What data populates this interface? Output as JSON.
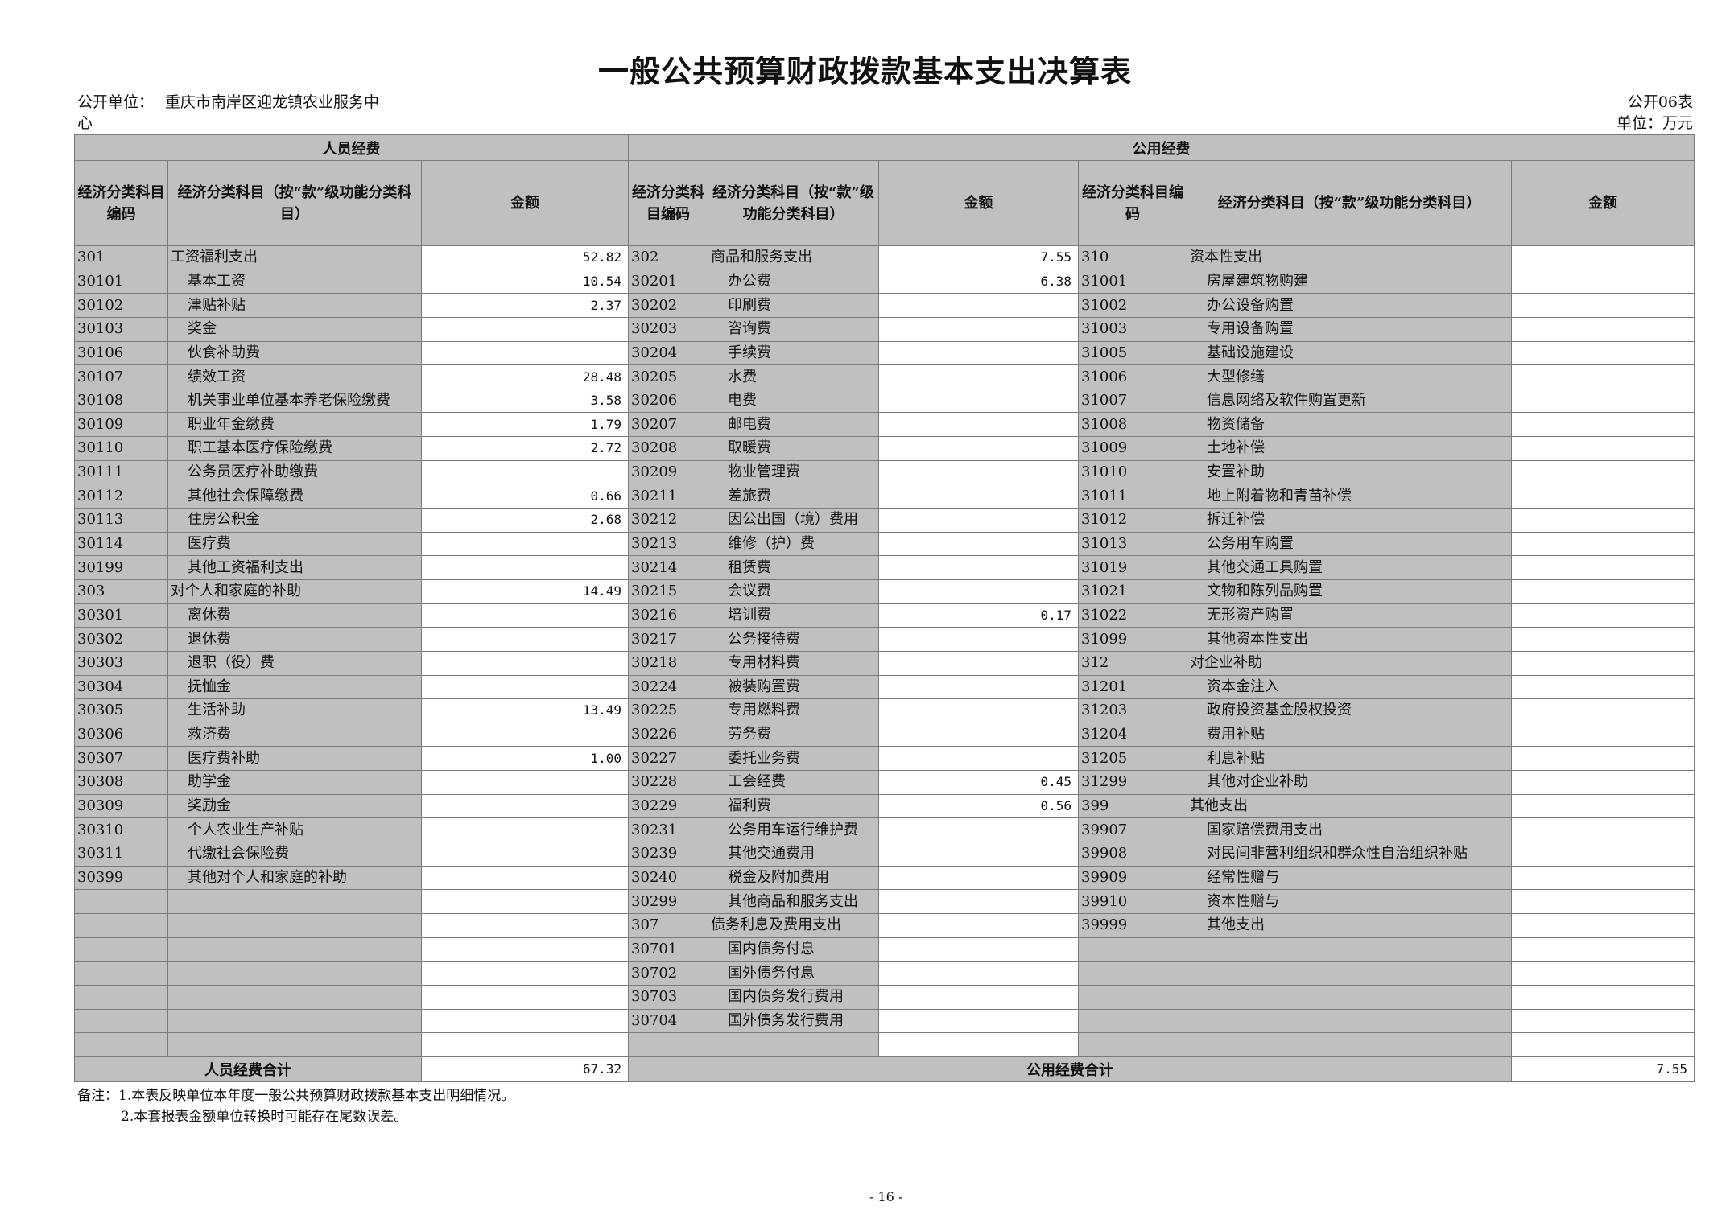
{
  "title": "一般公共预算财政拨款基本支出决算表",
  "unit_label": "公开单位：",
  "unit_name_line1": "重庆市南岸区迎龙镇农业服务中",
  "unit_name_line2": "心",
  "table_no": "公开06表",
  "currency_unit": "单位：万元",
  "colors": {
    "header_gray": "#c0c0c0",
    "amount_bg": "#ffffff",
    "border": "#7a7a7a"
  },
  "headers": {
    "personnel": "人员经费",
    "public": "公用经费",
    "code_a": "经济分类科目编码",
    "name_a": "经济分类科目（按“款”级功能分类科目）",
    "amount_a": "金额",
    "code_b": "经济分类科目编码",
    "name_b": "经济分类科目（按“款”级功能分类科目）",
    "amount_b": "金额",
    "code_c": "经济分类科目编码",
    "name_c": "经济分类科目（按“款”级功能分类科目）",
    "amount_c": "金额"
  },
  "personnel_rows": [
    {
      "code": "301",
      "name": "工资福利支出",
      "amount": "52.82"
    },
    {
      "code": "30101",
      "name": "基本工资",
      "amount": "10.54"
    },
    {
      "code": "30102",
      "name": "津贴补贴",
      "amount": "2.37"
    },
    {
      "code": "30103",
      "name": "奖金",
      "amount": ""
    },
    {
      "code": "30106",
      "name": "伙食补助费",
      "amount": ""
    },
    {
      "code": "30107",
      "name": "绩效工资",
      "amount": "28.48"
    },
    {
      "code": "30108",
      "name": "机关事业单位基本养老保险缴费",
      "amount": "3.58"
    },
    {
      "code": "30109",
      "name": "职业年金缴费",
      "amount": "1.79"
    },
    {
      "code": "30110",
      "name": "职工基本医疗保险缴费",
      "amount": "2.72"
    },
    {
      "code": "30111",
      "name": "公务员医疗补助缴费",
      "amount": ""
    },
    {
      "code": "30112",
      "name": "其他社会保障缴费",
      "amount": "0.66"
    },
    {
      "code": "30113",
      "name": "住房公积金",
      "amount": "2.68"
    },
    {
      "code": "30114",
      "name": "医疗费",
      "amount": ""
    },
    {
      "code": "30199",
      "name": "其他工资福利支出",
      "amount": ""
    },
    {
      "code": "303",
      "name": "对个人和家庭的补助",
      "amount": "14.49"
    },
    {
      "code": "30301",
      "name": "离休费",
      "amount": ""
    },
    {
      "code": "30302",
      "name": "退休费",
      "amount": ""
    },
    {
      "code": "30303",
      "name": "退职（役）费",
      "amount": ""
    },
    {
      "code": "30304",
      "name": "抚恤金",
      "amount": ""
    },
    {
      "code": "30305",
      "name": "生活补助",
      "amount": "13.49"
    },
    {
      "code": "30306",
      "name": "救济费",
      "amount": ""
    },
    {
      "code": "30307",
      "name": "医疗费补助",
      "amount": "1.00"
    },
    {
      "code": "30308",
      "name": "助学金",
      "amount": ""
    },
    {
      "code": "30309",
      "name": "奖励金",
      "amount": ""
    },
    {
      "code": "30310",
      "name": "个人农业生产补贴",
      "amount": ""
    },
    {
      "code": "30311",
      "name": "代缴社会保险费",
      "amount": ""
    },
    {
      "code": "30399",
      "name": "其他对个人和家庭的补助",
      "amount": ""
    }
  ],
  "public_rows_b": [
    {
      "code": "302",
      "name": "商品和服务支出",
      "amount": "7.55"
    },
    {
      "code": "30201",
      "name": "办公费",
      "amount": "6.38"
    },
    {
      "code": "30202",
      "name": "印刷费",
      "amount": ""
    },
    {
      "code": "30203",
      "name": "咨询费",
      "amount": ""
    },
    {
      "code": "30204",
      "name": "手续费",
      "amount": ""
    },
    {
      "code": "30205",
      "name": "水费",
      "amount": ""
    },
    {
      "code": "30206",
      "name": "电费",
      "amount": ""
    },
    {
      "code": "30207",
      "name": "邮电费",
      "amount": ""
    },
    {
      "code": "30208",
      "name": "取暖费",
      "amount": ""
    },
    {
      "code": "30209",
      "name": "物业管理费",
      "amount": ""
    },
    {
      "code": "30211",
      "name": "差旅费",
      "amount": ""
    },
    {
      "code": "30212",
      "name": "因公出国（境）费用",
      "amount": ""
    },
    {
      "code": "30213",
      "name": "维修（护）费",
      "amount": ""
    },
    {
      "code": "30214",
      "name": "租赁费",
      "amount": ""
    },
    {
      "code": "30215",
      "name": "会议费",
      "amount": ""
    },
    {
      "code": "30216",
      "name": "培训费",
      "amount": "0.17"
    },
    {
      "code": "30217",
      "name": "公务接待费",
      "amount": ""
    },
    {
      "code": "30218",
      "name": "专用材料费",
      "amount": ""
    },
    {
      "code": "30224",
      "name": "被装购置费",
      "amount": ""
    },
    {
      "code": "30225",
      "name": "专用燃料费",
      "amount": ""
    },
    {
      "code": "30226",
      "name": "劳务费",
      "amount": ""
    },
    {
      "code": "30227",
      "name": "委托业务费",
      "amount": ""
    },
    {
      "code": "30228",
      "name": "工会经费",
      "amount": "0.45"
    },
    {
      "code": "30229",
      "name": "福利费",
      "amount": "0.56"
    },
    {
      "code": "30231",
      "name": "公务用车运行维护费",
      "amount": ""
    },
    {
      "code": "30239",
      "name": "其他交通费用",
      "amount": ""
    },
    {
      "code": "30240",
      "name": "税金及附加费用",
      "amount": ""
    },
    {
      "code": "30299",
      "name": "其他商品和服务支出",
      "amount": ""
    },
    {
      "code": "307",
      "name": "债务利息及费用支出",
      "amount": ""
    },
    {
      "code": "30701",
      "name": "国内债务付息",
      "amount": ""
    },
    {
      "code": "30702",
      "name": "国外债务付息",
      "amount": ""
    },
    {
      "code": "30703",
      "name": "国内债务发行费用",
      "amount": ""
    },
    {
      "code": "30704",
      "name": "国外债务发行费用",
      "amount": ""
    }
  ],
  "public_rows_c": [
    {
      "code": "310",
      "name": "资本性支出",
      "amount": ""
    },
    {
      "code": "31001",
      "name": "房屋建筑物购建",
      "amount": ""
    },
    {
      "code": "31002",
      "name": "办公设备购置",
      "amount": ""
    },
    {
      "code": "31003",
      "name": "专用设备购置",
      "amount": ""
    },
    {
      "code": "31005",
      "name": "基础设施建设",
      "amount": ""
    },
    {
      "code": "31006",
      "name": "大型修缮",
      "amount": ""
    },
    {
      "code": "31007",
      "name": "信息网络及软件购置更新",
      "amount": ""
    },
    {
      "code": "31008",
      "name": "物资储备",
      "amount": ""
    },
    {
      "code": "31009",
      "name": "土地补偿",
      "amount": ""
    },
    {
      "code": "31010",
      "name": "安置补助",
      "amount": ""
    },
    {
      "code": "31011",
      "name": "地上附着物和青苗补偿",
      "amount": ""
    },
    {
      "code": "31012",
      "name": "拆迁补偿",
      "amount": ""
    },
    {
      "code": "31013",
      "name": "公务用车购置",
      "amount": ""
    },
    {
      "code": "31019",
      "name": "其他交通工具购置",
      "amount": ""
    },
    {
      "code": "31021",
      "name": "文物和陈列品购置",
      "amount": ""
    },
    {
      "code": "31022",
      "name": "无形资产购置",
      "amount": ""
    },
    {
      "code": "31099",
      "name": "其他资本性支出",
      "amount": ""
    },
    {
      "code": "312",
      "name": "对企业补助",
      "amount": ""
    },
    {
      "code": "31201",
      "name": "资本金注入",
      "amount": ""
    },
    {
      "code": "31203",
      "name": "政府投资基金股权投资",
      "amount": ""
    },
    {
      "code": "31204",
      "name": "费用补贴",
      "amount": ""
    },
    {
      "code": "31205",
      "name": "利息补贴",
      "amount": ""
    },
    {
      "code": "31299",
      "name": "其他对企业补助",
      "amount": ""
    },
    {
      "code": "399",
      "name": "其他支出",
      "amount": ""
    },
    {
      "code": "39907",
      "name": "国家赔偿费用支出",
      "amount": ""
    },
    {
      "code": "39908",
      "name": "对民间非营利组织和群众性自治组织补贴",
      "amount": ""
    },
    {
      "code": "39909",
      "name": "经常性赠与",
      "amount": ""
    },
    {
      "code": "39910",
      "name": "资本性赠与",
      "amount": ""
    },
    {
      "code": "39999",
      "name": "其他支出",
      "amount": ""
    }
  ],
  "totals": {
    "personnel_label": "人员经费合计",
    "personnel_amount": "67.32",
    "public_label": "公用经费合计",
    "public_amount": "7.55"
  },
  "notes": {
    "line1": "备注：1.本表反映单位本年度一般公共预算财政拨款基本支出明细情况。",
    "line2": "2.本套报表金额单位转换时可能存在尾数误差。"
  },
  "page_number": "- 16 -"
}
